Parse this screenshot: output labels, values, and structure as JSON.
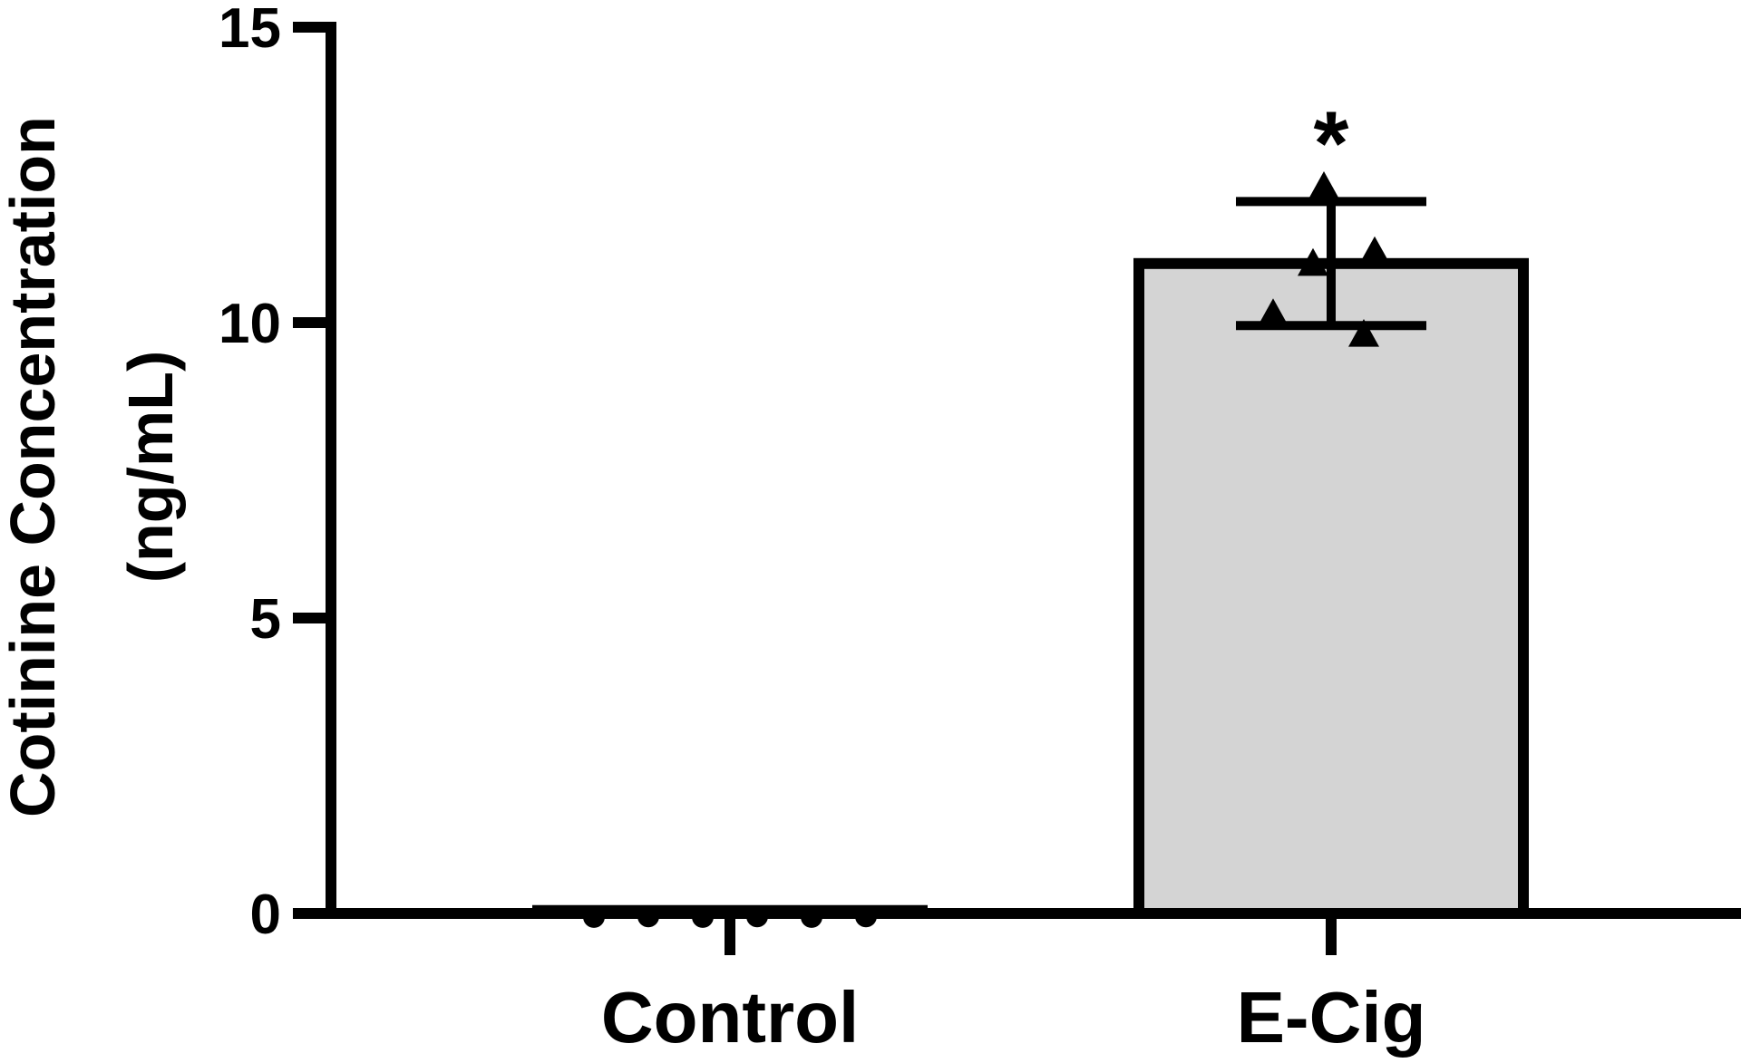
{
  "chart_data": {
    "type": "bar",
    "title": "",
    "xlabel": "",
    "ylabel_lines": [
      "Cotinine Concentration",
      "(ng/mL)"
    ],
    "ylim": [
      0,
      15
    ],
    "yticks": [
      0,
      5,
      10,
      15
    ],
    "ytick_labels": [
      "0",
      "5",
      "10",
      "15"
    ],
    "grid": false,
    "legend": "none",
    "categories": [
      "Control",
      "E-Cig"
    ],
    "values": [
      0.05,
      11.0
    ],
    "error": [
      0,
      1.05
    ],
    "bar_colors": [
      "#ffffff",
      "#d4d4d4"
    ],
    "points": [
      {
        "category": "Control",
        "marker": "circle",
        "values": [
          -0.06,
          -0.05,
          -0.06,
          -0.05,
          -0.06,
          -0.05
        ]
      },
      {
        "category": "E-Cig",
        "marker": "triangle",
        "values": [
          10.15,
          11.0,
          12.3,
          9.8,
          11.2
        ]
      }
    ],
    "significance": [
      "",
      "*"
    ]
  }
}
